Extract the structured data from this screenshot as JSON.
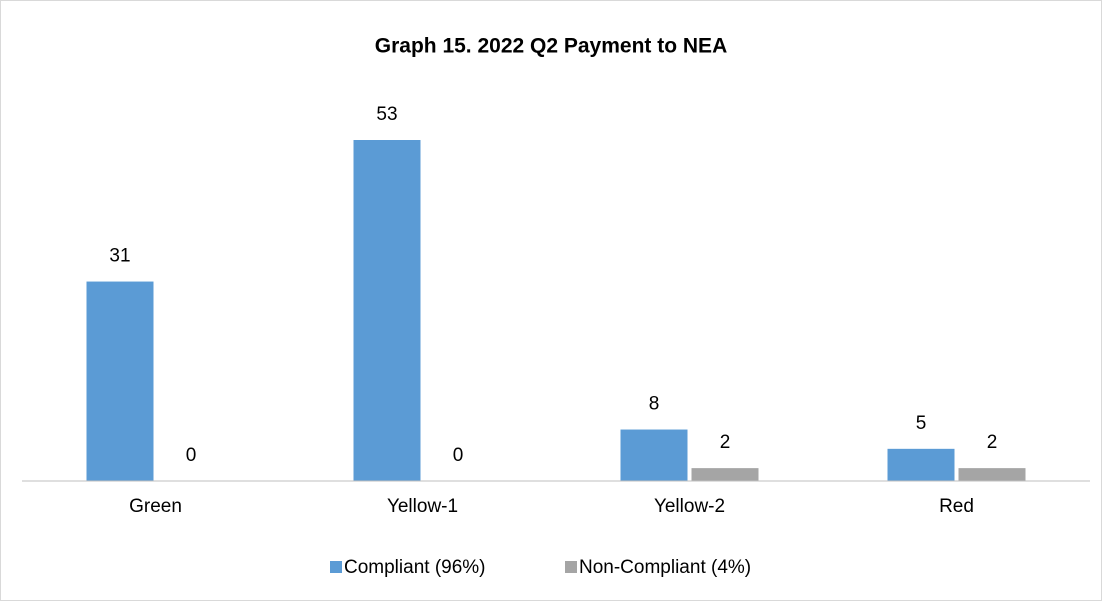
{
  "chart_data": {
    "type": "bar",
    "title": "Graph 15. 2022 Q2 Payment to NEA",
    "categories": [
      "Green",
      "Yellow-1",
      "Yellow-2",
      "Red"
    ],
    "series": [
      {
        "name": "Compliant (96%)",
        "color": "#5b9bd5",
        "values": [
          31,
          53,
          8,
          5
        ]
      },
      {
        "name": "Non-Compliant (4%)",
        "color": "#a5a5a5",
        "values": [
          0,
          0,
          2,
          2
        ]
      }
    ],
    "legend": "bottom"
  }
}
